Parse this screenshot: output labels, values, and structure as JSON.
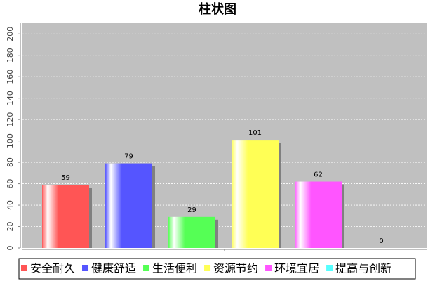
{
  "chart_data": {
    "type": "bar",
    "title": "柱状图",
    "series": [
      {
        "name": "安全耐久",
        "color": "#ff5555",
        "values": [
          59
        ]
      },
      {
        "name": "健康舒适",
        "color": "#5555ff",
        "values": [
          79
        ]
      },
      {
        "name": "生活便利",
        "color": "#55ff55",
        "values": [
          29
        ]
      },
      {
        "name": "资源节约",
        "color": "#ffff55",
        "values": [
          101
        ]
      },
      {
        "name": "环境宜居",
        "color": "#ff55ff",
        "values": [
          62
        ]
      },
      {
        "name": "提高与创新",
        "color": "#55ffff",
        "values": [
          0
        ]
      }
    ],
    "ylim": [
      0,
      210
    ],
    "yticks": [
      0,
      20,
      40,
      60,
      80,
      100,
      120,
      140,
      160,
      180,
      200
    ],
    "grid": true,
    "legend": "bottom"
  }
}
